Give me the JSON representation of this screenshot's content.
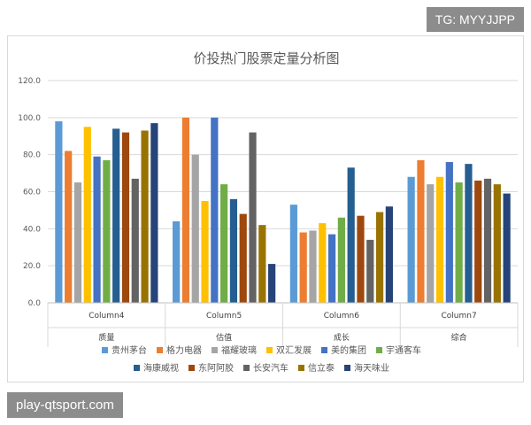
{
  "watermark_top": "TG: MYYJJPP",
  "watermark_bottom": "play-qtsport.com",
  "chart_data": {
    "type": "bar",
    "title": "价投热门股票定量分析图",
    "categories": [
      "Column4",
      "Column5",
      "Column6",
      "Column7"
    ],
    "group_labels": [
      "质量",
      "估值",
      "成长",
      "综合"
    ],
    "ylim": [
      0,
      120
    ],
    "yticks": [
      "0.0",
      "20.0",
      "40.0",
      "60.0",
      "80.0",
      "100.0",
      "120.0"
    ],
    "grid": true,
    "legend_position": "bottom",
    "series": [
      {
        "name": "贵州茅台",
        "color": "#5b9bd5",
        "values": [
          98,
          44,
          53,
          68
        ]
      },
      {
        "name": "格力电器",
        "color": "#ed7d31",
        "values": [
          82,
          100,
          38,
          77
        ]
      },
      {
        "name": "福耀玻璃",
        "color": "#a5a5a5",
        "values": [
          65,
          80,
          39,
          64
        ]
      },
      {
        "name": "双汇发展",
        "color": "#ffc000",
        "values": [
          95,
          55,
          43,
          68
        ]
      },
      {
        "name": "美的集团",
        "color": "#4472c4",
        "values": [
          79,
          100,
          37,
          76
        ]
      },
      {
        "name": "宇通客车",
        "color": "#70ad47",
        "values": [
          77,
          64,
          46,
          65
        ]
      },
      {
        "name": "海康威视",
        "color": "#255e91",
        "values": [
          94,
          56,
          73,
          75
        ]
      },
      {
        "name": "东阿阿胶",
        "color": "#9e480e",
        "values": [
          92,
          48,
          47,
          66
        ]
      },
      {
        "name": "长安汽车",
        "color": "#636363",
        "values": [
          67,
          92,
          34,
          67
        ]
      },
      {
        "name": "信立泰",
        "color": "#997300",
        "values": [
          93,
          42,
          49,
          64
        ]
      },
      {
        "name": "海天味业",
        "color": "#264478",
        "values": [
          97,
          21,
          52,
          59
        ]
      }
    ]
  }
}
